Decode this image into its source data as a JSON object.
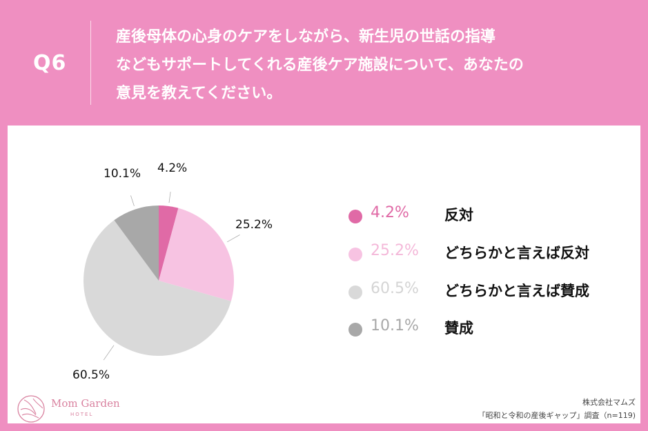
{
  "header": {
    "question_number": "Q6",
    "question_lines": [
      "産後母体の心身のケアをしながら、新生児の世話の指導",
      "などもサポートしてくれる産後ケア施設について、あなたの",
      "意見を教えてください。"
    ]
  },
  "colors": {
    "background": "#ef8fc1",
    "panel": "#ffffff",
    "opposed": "#e06aa6",
    "somewhat_opposed": "#f7c3e2",
    "somewhat_agree": "#d9d9d9",
    "agree": "#a8a8a8"
  },
  "chart_data": {
    "type": "pie",
    "title": "産後母体の心身のケアをしながら、新生児の世話の指導などもサポートしてくれる産後ケア施設について、あなたの意見を教えてください。",
    "categories": [
      "反対",
      "どちらかと言えば反対",
      "どちらかと言えば賛成",
      "賛成"
    ],
    "values": [
      4.2,
      25.2,
      60.5,
      10.1
    ],
    "labels": [
      "4.2%",
      "25.2%",
      "60.5%",
      "10.1%"
    ],
    "colors": [
      "#e06aa6",
      "#f7c3e2",
      "#d9d9d9",
      "#a8a8a8"
    ],
    "start_angle": "12 o'clock, clockwise",
    "legend_position": "right"
  },
  "legend": [
    {
      "pct": "4.2%",
      "label": "反対",
      "color": "#e06aa6",
      "text_color": "#e06aa6"
    },
    {
      "pct": "25.2%",
      "label": "どちらかと言えば反対",
      "color": "#f7c3e2",
      "text_color": "#f4b8d9"
    },
    {
      "pct": "60.5%",
      "label": "どちらかと言えば賛成",
      "color": "#d9d9d9",
      "text_color": "#d4d4d4"
    },
    {
      "pct": "10.1%",
      "label": "賛成",
      "color": "#a8a8a8",
      "text_color": "#a8a8a8"
    }
  ],
  "footer": {
    "logo_name": "Mom Garden",
    "logo_sub": "HOTEL",
    "company": "株式会社マムズ",
    "survey": "「昭和と令和の産後ギャップ」調査（n=119)"
  }
}
